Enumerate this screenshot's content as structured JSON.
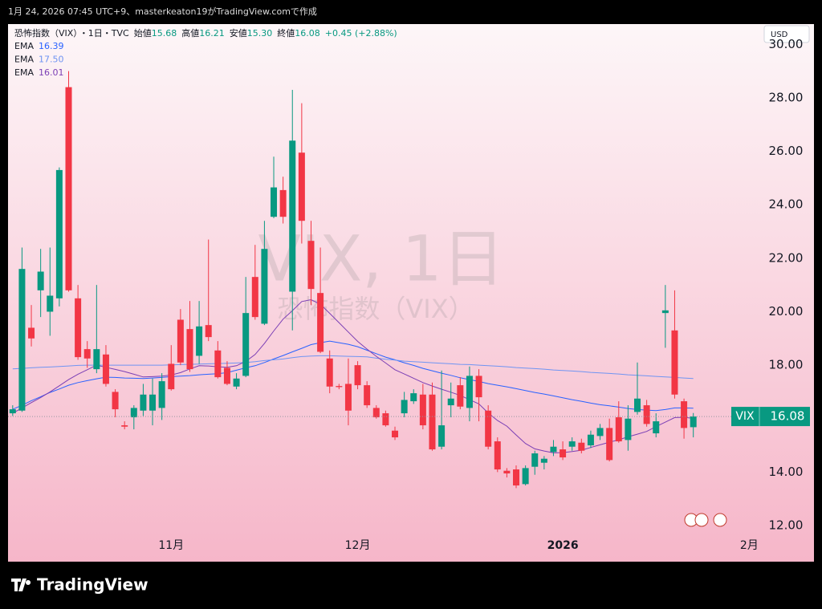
{
  "header_text": "1月 24, 2026 07:45 UTC+9、masterkeaton19がTradingView.comで作成",
  "brand": "TradingView",
  "chart_data": {
    "type": "candlestick",
    "interval_source": "・1日・TVC",
    "watermark": "VIX, 1日",
    "symbol": "VIX",
    "currency": "USD",
    "ohlc_legend": [
      {
        "label": "始値",
        "value": "15.68"
      },
      {
        "label": "高値",
        "value": "16.21"
      },
      {
        "label": "安値",
        "value": "15.30"
      },
      {
        "label": "終値",
        "value": "16.08"
      }
    ],
    "change": "+0.45 (+2.88%)",
    "up_color": "#089981",
    "down_color": "#f23645",
    "grid": false,
    "xlim": [
      -0.5,
      80
    ],
    "xticks": [
      {
        "value": 17,
        "label": "11月"
      },
      {
        "value": 37,
        "label": "12月"
      },
      {
        "value": 59,
        "label": "2026"
      },
      {
        "value": 79,
        "label": "2月"
      }
    ],
    "ylim": [
      11.7,
      30.76
    ],
    "yticks": [
      {
        "value": 12,
        "label": "12.00"
      },
      {
        "value": 14,
        "label": "14.00"
      },
      {
        "value": 16,
        "label": "16.00"
      },
      {
        "value": 18,
        "label": "18.00"
      },
      {
        "value": 20,
        "label": "20.00"
      },
      {
        "value": 22,
        "label": "22.00"
      },
      {
        "value": 24,
        "label": "24.00"
      },
      {
        "value": 26,
        "label": "26.00"
      },
      {
        "value": 28,
        "label": "28.00"
      },
      {
        "value": 30,
        "label": "30.00"
      }
    ],
    "series": [
      {
        "name": "恐怖指数（VIX）",
        "type": "candlestick",
        "open": [
          16.2,
          16.3,
          19.4,
          20.8,
          20.0,
          20.5,
          28.4,
          20.5,
          18.6,
          17.85,
          18.4,
          17.0,
          15.75,
          16.05,
          16.3,
          16.3,
          16.4,
          18.05,
          19.7,
          19.35,
          18.35,
          19.5,
          18.55,
          17.9,
          17.2,
          17.6,
          21.3,
          19.55,
          23.55,
          24.55,
          20.75,
          25.95,
          22.65,
          20.7,
          18.25,
          17.22,
          17.3,
          18.0,
          17.25,
          16.4,
          16.2,
          15.55,
          16.2,
          16.65,
          16.9,
          16.9,
          14.95,
          16.5,
          17.25,
          16.4,
          17.6,
          16.3,
          15.15,
          14.05,
          14.1,
          13.55,
          14.2,
          14.35,
          14.75,
          14.85,
          14.95,
          15.1,
          15.0,
          15.35,
          15.65,
          16.05,
          15.2,
          16.25,
          16.5,
          15.45,
          19.95,
          19.3,
          16.65,
          15.68
        ],
        "high": [
          16.5,
          22.4,
          20.25,
          22.35,
          22.4,
          25.4,
          29.0,
          21.0,
          18.9,
          21.0,
          18.75,
          17.1,
          15.9,
          16.5,
          17.3,
          17.5,
          17.7,
          18.75,
          20.1,
          20.4,
          20.4,
          22.7,
          18.9,
          18.15,
          17.7,
          21.3,
          22.5,
          23.4,
          25.8,
          25.05,
          28.3,
          27.8,
          23.4,
          22.4,
          18.55,
          17.3,
          18.25,
          18.15,
          17.4,
          16.5,
          16.3,
          15.7,
          17.0,
          17.1,
          17.3,
          17.35,
          17.8,
          17.35,
          17.55,
          17.95,
          17.85,
          16.5,
          15.3,
          14.15,
          14.25,
          14.25,
          14.8,
          14.6,
          15.2,
          15.15,
          15.3,
          15.25,
          15.55,
          15.8,
          16.0,
          16.65,
          16.5,
          18.1,
          16.7,
          16.2,
          21.0,
          20.8,
          16.75,
          16.21
        ],
        "low": [
          16.1,
          16.25,
          18.7,
          19.8,
          19.1,
          20.2,
          20.75,
          18.2,
          17.9,
          17.7,
          17.2,
          16.05,
          15.6,
          15.6,
          16.1,
          15.75,
          15.95,
          17.05,
          18.0,
          17.75,
          18.05,
          18.9,
          17.5,
          17.25,
          17.1,
          17.55,
          19.7,
          19.5,
          23.5,
          23.3,
          19.3,
          22.55,
          20.25,
          18.45,
          16.95,
          17.1,
          15.75,
          17.1,
          16.4,
          16.0,
          15.7,
          15.2,
          16.05,
          16.55,
          15.6,
          14.8,
          14.85,
          16.05,
          16.35,
          15.9,
          15.9,
          14.85,
          14.0,
          13.8,
          13.4,
          13.5,
          13.9,
          14.1,
          14.6,
          14.45,
          14.8,
          14.7,
          14.9,
          15.2,
          14.4,
          15.1,
          14.8,
          16.15,
          15.7,
          15.3,
          18.65,
          16.75,
          15.25,
          15.3
        ],
        "close": [
          16.35,
          21.6,
          19.0,
          21.5,
          20.6,
          25.3,
          20.8,
          18.3,
          18.25,
          18.6,
          17.3,
          16.35,
          15.7,
          16.4,
          16.9,
          16.9,
          17.4,
          17.1,
          18.1,
          17.85,
          19.45,
          19.05,
          17.55,
          17.3,
          17.5,
          19.95,
          19.8,
          22.35,
          24.65,
          23.55,
          26.4,
          23.4,
          20.85,
          18.5,
          17.2,
          17.18,
          16.3,
          17.25,
          16.5,
          16.05,
          15.75,
          15.3,
          16.7,
          16.95,
          15.75,
          14.85,
          15.75,
          16.75,
          16.45,
          17.6,
          16.8,
          14.95,
          14.1,
          13.95,
          13.5,
          14.15,
          14.7,
          14.5,
          14.95,
          14.55,
          15.15,
          14.8,
          15.4,
          15.65,
          14.45,
          15.15,
          16.0,
          16.75,
          15.8,
          15.9,
          20.05,
          16.9,
          15.65,
          16.08
        ]
      },
      {
        "name": "EMA",
        "type": "line",
        "color": "#2962ff",
        "legend_value": "16.39",
        "values": [
          16.35,
          16.5,
          16.67,
          16.82,
          16.98,
          17.11,
          17.25,
          17.35,
          17.42,
          17.49,
          17.55,
          17.54,
          17.52,
          17.51,
          17.5,
          17.52,
          17.54,
          17.57,
          17.59,
          17.61,
          17.64,
          17.66,
          17.68,
          17.72,
          17.81,
          17.9,
          17.98,
          18.1,
          18.23,
          18.36,
          18.5,
          18.63,
          18.77,
          18.84,
          18.9,
          18.84,
          18.78,
          18.69,
          18.56,
          18.43,
          18.3,
          18.2,
          18.09,
          17.99,
          17.88,
          17.79,
          17.7,
          17.62,
          17.53,
          17.46,
          17.39,
          17.31,
          17.25,
          17.19,
          17.12,
          17.05,
          16.98,
          16.92,
          16.85,
          16.78,
          16.71,
          16.65,
          16.58,
          16.52,
          16.48,
          16.43,
          16.38,
          16.34,
          16.32,
          16.3,
          16.34,
          16.4,
          16.4,
          16.39
        ]
      },
      {
        "name": "EMA",
        "type": "line",
        "color": "#6f94f2",
        "legend_value": "17.50",
        "values": [
          17.86,
          17.88,
          17.9,
          17.92,
          17.93,
          17.95,
          17.97,
          17.99,
          18.0,
          18.0,
          18.0,
          18.0,
          18.0,
          18.0,
          18.0,
          18.0,
          18.0,
          18.01,
          18.02,
          18.03,
          18.04,
          18.05,
          18.06,
          18.07,
          18.08,
          18.1,
          18.13,
          18.17,
          18.2,
          18.23,
          18.28,
          18.32,
          18.34,
          18.35,
          18.35,
          18.34,
          18.33,
          18.32,
          18.31,
          18.26,
          18.22,
          18.19,
          18.15,
          18.13,
          18.11,
          18.09,
          18.07,
          18.05,
          18.03,
          18.02,
          18.0,
          17.98,
          17.96,
          17.94,
          17.91,
          17.89,
          17.87,
          17.85,
          17.82,
          17.8,
          17.78,
          17.76,
          17.73,
          17.71,
          17.69,
          17.67,
          17.64,
          17.62,
          17.6,
          17.58,
          17.56,
          17.54,
          17.52,
          17.5
        ]
      },
      {
        "name": "EMA",
        "type": "line",
        "color": "#7b3fb5",
        "legend_value": "16.01",
        "values": [
          16.2,
          16.4,
          16.6,
          16.79,
          17.0,
          17.23,
          17.46,
          17.66,
          17.83,
          18.0,
          17.92,
          17.84,
          17.76,
          17.66,
          17.56,
          17.57,
          17.59,
          17.63,
          17.72,
          17.86,
          17.98,
          17.97,
          17.94,
          17.92,
          17.98,
          18.14,
          18.4,
          18.81,
          19.28,
          19.72,
          20.04,
          20.38,
          20.45,
          20.28,
          19.94,
          19.59,
          19.24,
          18.89,
          18.6,
          18.33,
          18.08,
          17.83,
          17.67,
          17.51,
          17.35,
          17.22,
          17.1,
          16.99,
          16.87,
          16.71,
          16.55,
          16.21,
          15.93,
          15.72,
          15.39,
          15.07,
          14.87,
          14.79,
          14.72,
          14.73,
          14.77,
          14.82,
          14.92,
          15.02,
          15.12,
          15.21,
          15.32,
          15.42,
          15.52,
          15.7,
          15.87,
          16.04,
          16.05,
          16.01
        ]
      }
    ]
  }
}
